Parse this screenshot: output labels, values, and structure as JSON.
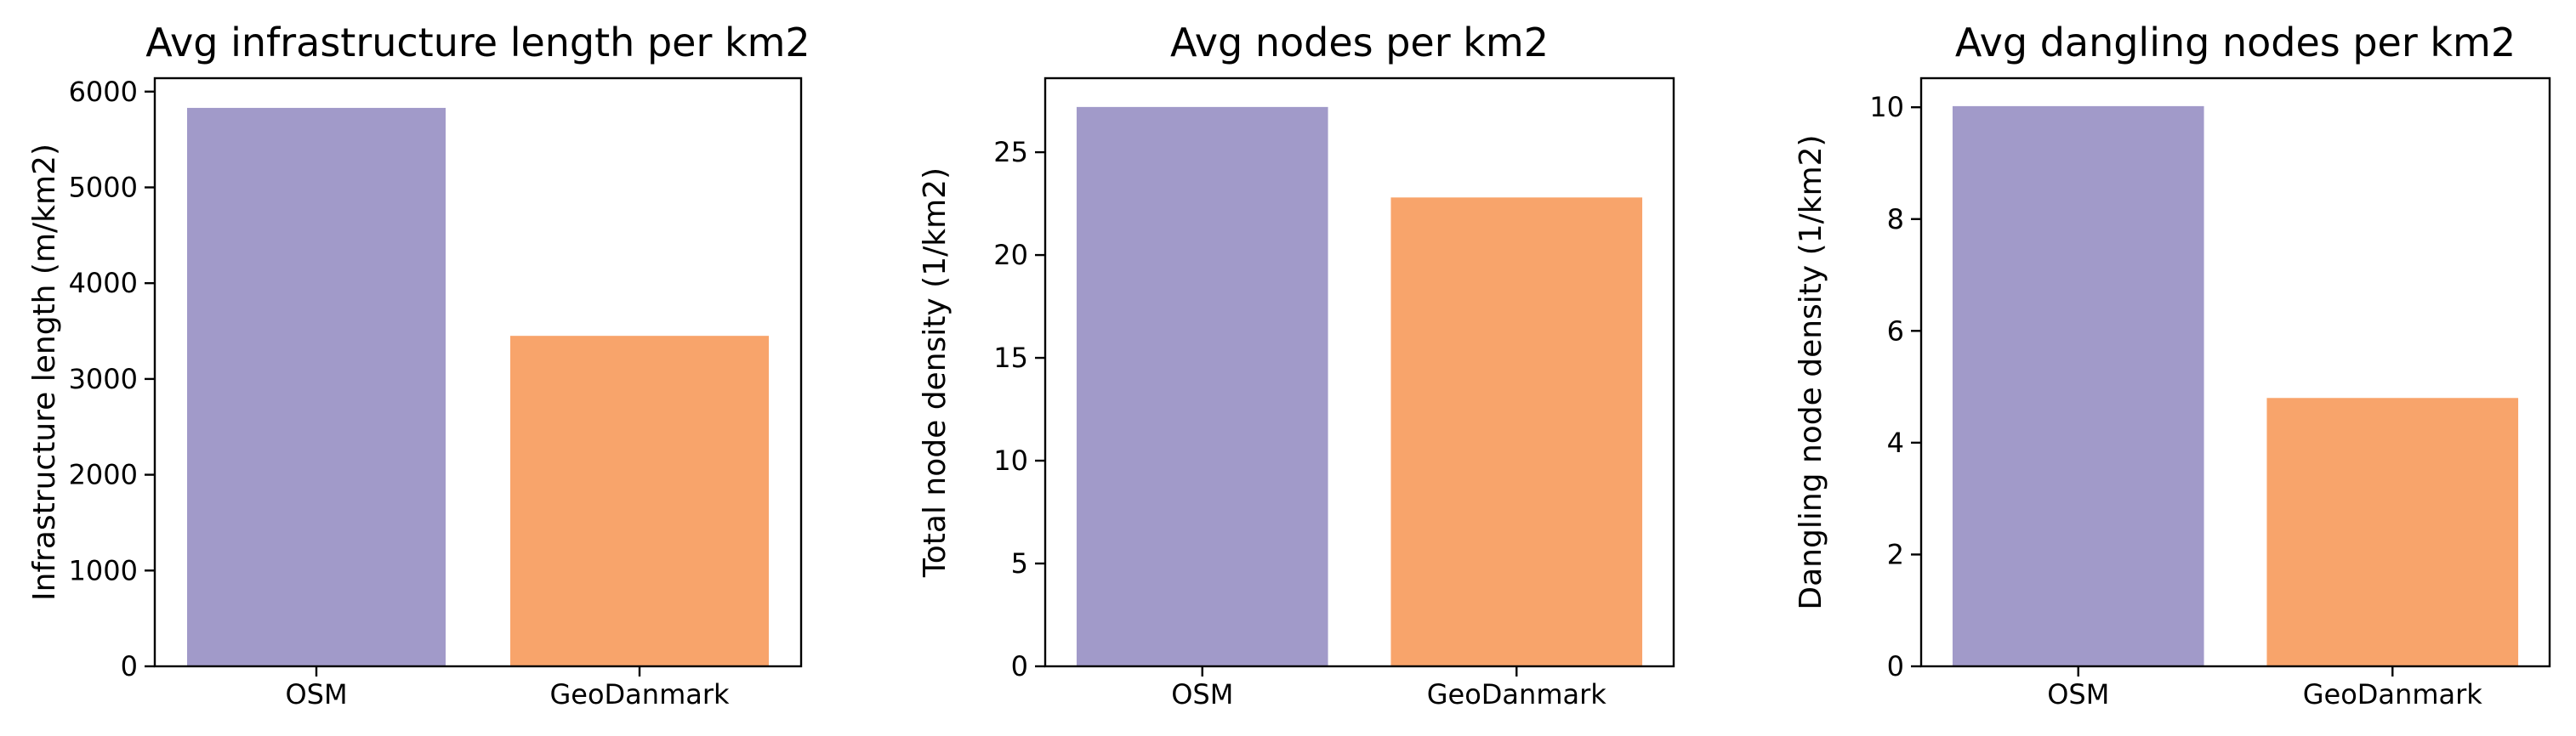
{
  "chart_data": [
    {
      "type": "bar",
      "title": "Avg infrastructure length per km2",
      "xlabel": "",
      "ylabel": "Infrastructure length (m/km2)",
      "categories": [
        "OSM",
        "GeoDanmark"
      ],
      "values": [
        5830,
        3450
      ],
      "colors": [
        "#a19ac9",
        "#f8a46b"
      ],
      "ylim": [
        0,
        6140
      ],
      "yticks": [
        0,
        1000,
        2000,
        3000,
        4000,
        5000,
        6000
      ],
      "ytick_labels": [
        "0",
        "1000",
        "2000",
        "3000",
        "4000",
        "5000",
        "6000"
      ],
      "grid": false
    },
    {
      "type": "bar",
      "title": "Avg nodes per km2",
      "xlabel": "",
      "ylabel": "Total node density (1/km2)",
      "categories": [
        "OSM",
        "GeoDanmark"
      ],
      "values": [
        27.2,
        22.8
      ],
      "colors": [
        "#a19ac9",
        "#f8a46b"
      ],
      "ylim": [
        0,
        28.6
      ],
      "yticks": [
        0,
        5,
        10,
        15,
        20,
        25
      ],
      "ytick_labels": [
        "0",
        "5",
        "10",
        "15",
        "20",
        "25"
      ],
      "grid": false
    },
    {
      "type": "bar",
      "title": "Avg dangling nodes per km2",
      "xlabel": "",
      "ylabel": "Dangling node density (1/km2)",
      "categories": [
        "OSM",
        "GeoDanmark"
      ],
      "values": [
        10.02,
        4.8
      ],
      "colors": [
        "#a19ac9",
        "#f8a46b"
      ],
      "ylim": [
        0,
        10.52
      ],
      "yticks": [
        0,
        2,
        4,
        6,
        8,
        10
      ],
      "ytick_labels": [
        "0",
        "2",
        "4",
        "6",
        "8",
        "10"
      ],
      "grid": false
    }
  ]
}
